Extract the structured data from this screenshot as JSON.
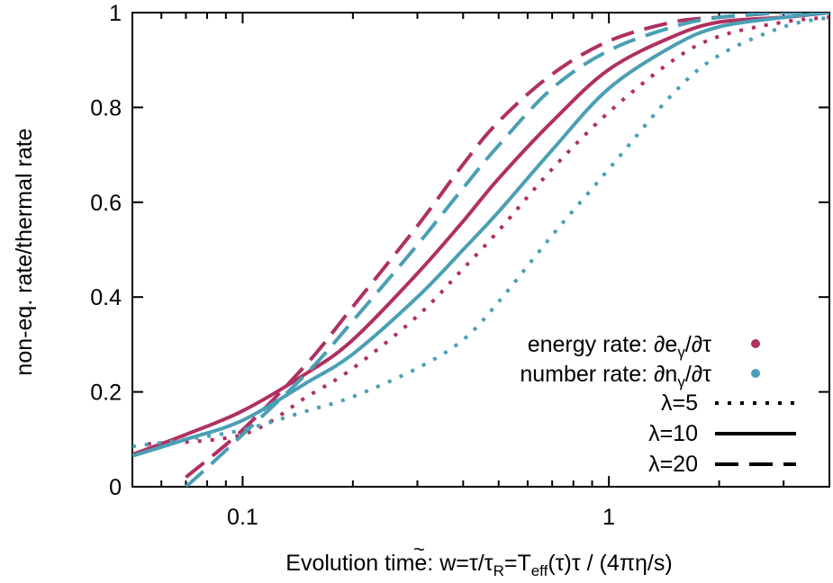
{
  "chart_data": {
    "type": "line",
    "title": "",
    "xlabel": "Evolution time: w̃=τ/τR=Teff(τ)τ / (4πη/s)",
    "xlabel_parts": {
      "pre": "Evolution time: ",
      "w": "w",
      "tilde": "~",
      "a": "=τ/τ",
      "sub1": "R",
      "b": "=T",
      "sub2": "eff",
      "c": "(τ)τ / (4πη/s)"
    },
    "ylabel": "non-eq. rate/thermal rate",
    "x_scale": "log",
    "xlim": [
      0.05,
      4
    ],
    "ylim": [
      0,
      1
    ],
    "x_ticks": [
      {
        "v": 0.1,
        "label": "0.1"
      },
      {
        "v": 1,
        "label": "1"
      }
    ],
    "y_ticks": [
      {
        "v": 0,
        "label": "0"
      },
      {
        "v": 0.2,
        "label": "0.2"
      },
      {
        "v": 0.4,
        "label": "0.4"
      },
      {
        "v": 0.6,
        "label": "0.6"
      },
      {
        "v": 0.8,
        "label": "0.8"
      },
      {
        "v": 1,
        "label": "1"
      }
    ],
    "colors": {
      "energy": "#b03060",
      "number": "#4a9fb5"
    },
    "legend_position": "bottom-right",
    "legend": {
      "energy": {
        "pre": "energy rate: ∂e",
        "sub": "γ",
        "post": "/∂τ"
      },
      "number": {
        "pre": "number rate: ∂n",
        "sub": "γ",
        "post": "/∂τ"
      },
      "lambda5": "λ=5",
      "lambda10": "λ=10",
      "lambda20": "λ=20"
    },
    "series": [
      {
        "quantity": "energy",
        "lambda": 5,
        "style": "dotted",
        "x": [
          0.055,
          0.1,
          0.15,
          0.2,
          0.3,
          0.4,
          0.5,
          0.7,
          1.0,
          1.5,
          2.0,
          3.0,
          4.0
        ],
        "y": [
          0.09,
          0.11,
          0.19,
          0.25,
          0.36,
          0.46,
          0.54,
          0.67,
          0.79,
          0.9,
          0.95,
          0.98,
          0.99
        ]
      },
      {
        "quantity": "energy",
        "lambda": 10,
        "style": "solid",
        "x": [
          0.05,
          0.07,
          0.1,
          0.15,
          0.2,
          0.3,
          0.4,
          0.5,
          0.7,
          1.0,
          1.5,
          2.0,
          3.0,
          4.0
        ],
        "y": [
          0.068,
          0.11,
          0.16,
          0.24,
          0.31,
          0.45,
          0.56,
          0.65,
          0.77,
          0.88,
          0.95,
          0.98,
          0.99,
          1.0
        ]
      },
      {
        "quantity": "energy",
        "lambda": 20,
        "style": "dashed",
        "x": [
          0.07,
          0.1,
          0.15,
          0.2,
          0.3,
          0.4,
          0.5,
          0.7,
          1.0,
          1.5,
          2.0,
          3.0,
          4.0
        ],
        "y": [
          0.02,
          0.12,
          0.26,
          0.38,
          0.55,
          0.68,
          0.77,
          0.87,
          0.94,
          0.98,
          0.99,
          1.0,
          1.0
        ]
      },
      {
        "quantity": "number",
        "lambda": 5,
        "style": "dotted",
        "x": [
          0.05,
          0.07,
          0.1,
          0.15,
          0.2,
          0.3,
          0.4,
          0.5,
          0.7,
          1.0,
          1.5,
          2.0,
          3.0,
          4.0
        ],
        "y": [
          0.085,
          0.1,
          0.12,
          0.16,
          0.19,
          0.25,
          0.31,
          0.39,
          0.53,
          0.67,
          0.83,
          0.91,
          0.97,
          0.99
        ]
      },
      {
        "quantity": "number",
        "lambda": 10,
        "style": "solid",
        "x": [
          0.05,
          0.07,
          0.1,
          0.15,
          0.2,
          0.3,
          0.4,
          0.5,
          0.7,
          1.0,
          1.5,
          2.0,
          3.0,
          4.0
        ],
        "y": [
          0.065,
          0.1,
          0.14,
          0.22,
          0.28,
          0.4,
          0.5,
          0.58,
          0.71,
          0.84,
          0.93,
          0.97,
          0.99,
          1.0
        ]
      },
      {
        "quantity": "number",
        "lambda": 20,
        "style": "dashed",
        "x": [
          0.07,
          0.08,
          0.1,
          0.15,
          0.2,
          0.3,
          0.4,
          0.5,
          0.7,
          1.0,
          1.5,
          2.0,
          3.0,
          4.0
        ],
        "y": [
          0.0,
          0.04,
          0.11,
          0.24,
          0.35,
          0.51,
          0.63,
          0.72,
          0.84,
          0.92,
          0.97,
          0.99,
          1.0,
          1.0
        ]
      }
    ]
  }
}
